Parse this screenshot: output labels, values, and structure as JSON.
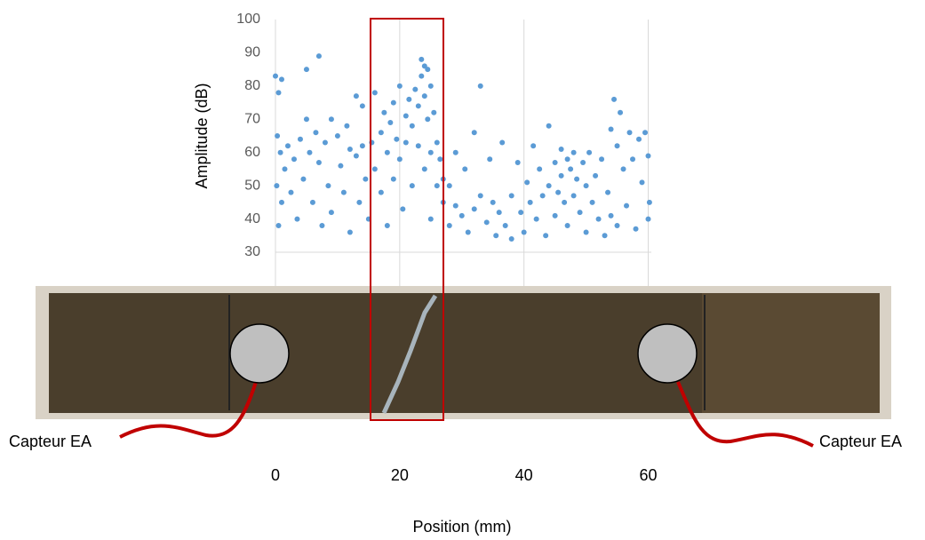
{
  "chart_data": {
    "type": "scatter",
    "y_label": "Amplitude (dB)",
    "x_label": "Position (mm)",
    "sensor_labels": [
      "Capteur EA",
      "Capteur EA"
    ],
    "color": "#5b9bd5",
    "xlim": [
      0,
      60.5
    ],
    "ylim": [
      30,
      100
    ],
    "xticks": [
      0,
      20,
      40,
      60
    ],
    "yticks": [
      30,
      40,
      50,
      60,
      70,
      80,
      90,
      100
    ],
    "grid": true,
    "x": [
      0,
      0.5,
      1,
      0.3,
      0.8,
      0.2,
      1,
      0.5,
      1.5,
      2,
      2.5,
      3,
      3.5,
      4,
      4.5,
      5,
      5,
      5.5,
      6,
      6.5,
      7,
      7,
      7.5,
      8,
      8.5,
      9,
      9,
      10,
      10.5,
      11,
      11.5,
      12,
      12,
      13,
      13,
      13.5,
      14,
      14,
      14.5,
      15,
      15.5,
      16,
      16,
      17,
      17,
      17.5,
      18,
      18,
      18.5,
      19,
      19,
      19.5,
      20,
      20,
      20.5,
      21,
      21,
      21.5,
      22,
      22,
      22.5,
      23,
      23,
      23.5,
      23.5,
      24,
      24,
      24,
      24.5,
      24.5,
      25,
      25,
      25,
      25.5,
      26,
      26,
      26.5,
      27,
      27,
      28,
      28,
      29,
      29,
      30,
      30.5,
      31,
      32,
      32,
      33,
      33,
      34,
      34.5,
      35,
      35.5,
      36,
      36.5,
      37,
      38,
      38,
      39,
      39.5,
      40,
      40.5,
      41,
      41.5,
      42,
      42.5,
      43,
      43.5,
      44,
      44,
      45,
      45,
      45.5,
      46,
      46,
      46.5,
      47,
      47,
      47.5,
      48,
      48,
      48.5,
      49,
      49.5,
      50,
      50,
      50.5,
      51,
      51.5,
      52,
      52.5,
      53,
      53.5,
      54,
      54,
      54.5,
      55,
      55,
      55.5,
      56,
      56.5,
      57,
      57.5,
      58,
      58.5,
      59,
      59.5,
      60,
      60,
      60.2
    ],
    "values": [
      83,
      78,
      82,
      65,
      60,
      50,
      45,
      38,
      55,
      62,
      48,
      58,
      40,
      64,
      52,
      85,
      70,
      60,
      45,
      66,
      89,
      57,
      38,
      63,
      50,
      70,
      42,
      65,
      56,
      48,
      68,
      61,
      36,
      77,
      59,
      45,
      74,
      62,
      52,
      40,
      63,
      55,
      78,
      66,
      48,
      72,
      60,
      38,
      69,
      75,
      52,
      64,
      80,
      58,
      43,
      71,
      63,
      76,
      68,
      50,
      79,
      74,
      62,
      88,
      83,
      86,
      77,
      55,
      85,
      70,
      80,
      60,
      40,
      72,
      63,
      50,
      58,
      52,
      45,
      50,
      38,
      60,
      44,
      41,
      55,
      36,
      66,
      43,
      80,
      47,
      39,
      58,
      45,
      35,
      42,
      63,
      38,
      47,
      34,
      57,
      42,
      36,
      51,
      45,
      62,
      40,
      55,
      47,
      35,
      68,
      50,
      57,
      41,
      48,
      61,
      53,
      45,
      58,
      38,
      55,
      60,
      47,
      52,
      42,
      57,
      50,
      36,
      60,
      45,
      53,
      40,
      58,
      35,
      48,
      67,
      41,
      76,
      62,
      38,
      72,
      55,
      44,
      66,
      58,
      37,
      64,
      51,
      66,
      59,
      40,
      45
    ]
  }
}
